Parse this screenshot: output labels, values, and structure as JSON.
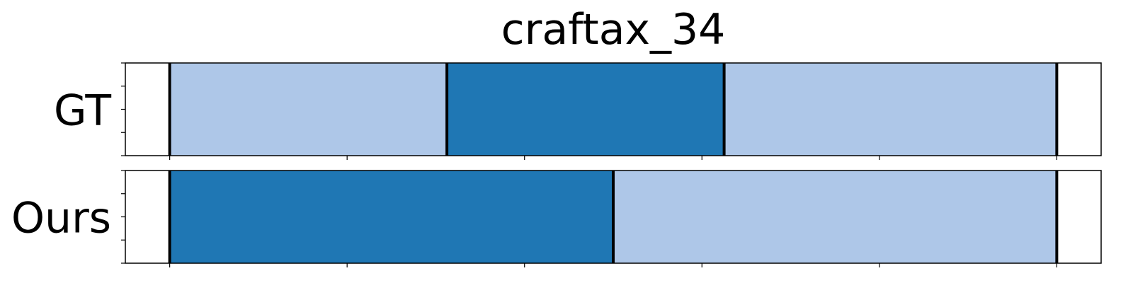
{
  "chart_data": {
    "type": "bar",
    "subtype": "segmentation-timeline",
    "title": "craftax_34",
    "rows": [
      {
        "label": "GT",
        "segments": [
          {
            "start": 0.0,
            "end": 0.3125,
            "class": "light"
          },
          {
            "start": 0.3125,
            "end": 0.625,
            "class": "dark"
          },
          {
            "start": 0.625,
            "end": 1.0,
            "class": "light"
          }
        ],
        "boundaries": [
          0.0,
          0.3125,
          0.625,
          1.0
        ]
      },
      {
        "label": "Ours",
        "segments": [
          {
            "start": 0.0,
            "end": 0.5,
            "class": "dark"
          },
          {
            "start": 0.5,
            "end": 1.0,
            "class": "light"
          }
        ],
        "boundaries": [
          0.0,
          0.5,
          1.0
        ]
      }
    ],
    "xlim": [
      -0.05,
      1.05
    ],
    "xticks": [
      0.0,
      0.2,
      0.4,
      0.6,
      0.8,
      1.0
    ],
    "yticks_per_row": 5,
    "show_tick_labels": false,
    "grid": false,
    "colors": {
      "light": "#aec7e8",
      "dark": "#1f77b4",
      "boundary": "#000000",
      "frame": "#000000"
    }
  }
}
